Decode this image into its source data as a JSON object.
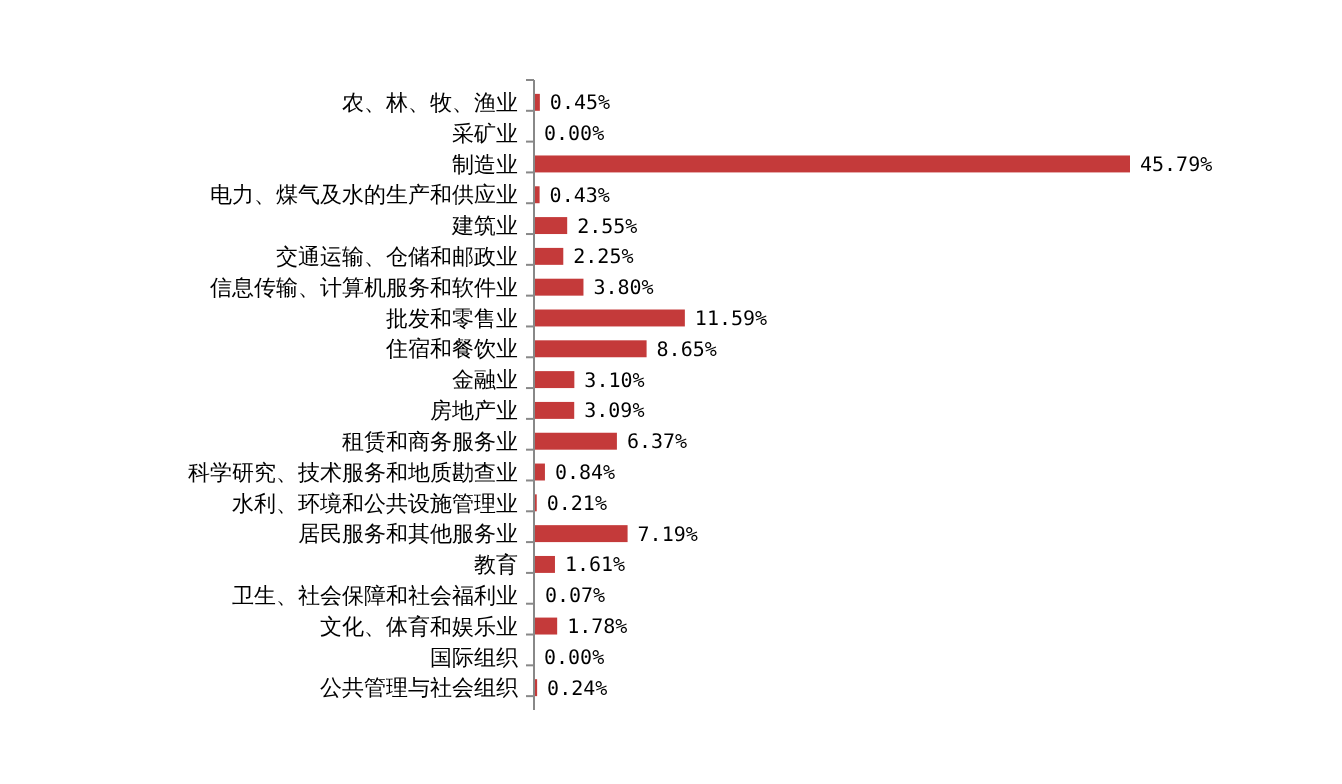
{
  "chart_data": {
    "type": "bar",
    "orientation": "horizontal",
    "categories": [
      "农、林、牧、渔业",
      "采矿业",
      "制造业",
      "电力、煤气及水的生产和供应业",
      "建筑业",
      "交通运输、仓储和邮政业",
      "信息传输、计算机服务和软件业",
      "批发和零售业",
      "住宿和餐饮业",
      "金融业",
      "房地产业",
      "租赁和商务服务业",
      "科学研究、技术服务和地质勘查业",
      "水利、环境和公共设施管理业",
      "居民服务和其他服务业",
      "教育",
      "卫生、社会保障和社会福利业",
      "文化、体育和娱乐业",
      "国际组织",
      "公共管理与社会组织"
    ],
    "values": [
      0.45,
      0,
      45.79,
      0.43,
      2.55,
      2.25,
      3.8,
      11.59,
      8.65,
      3.1,
      3.09,
      6.37,
      0.84,
      0.21,
      7.19,
      1.61,
      0.07,
      1.78,
      0,
      0.24
    ],
    "value_labels": [
      "0.45%",
      "0.00%",
      "45.79%",
      "0.43%",
      "2.55%",
      "2.25%",
      "3.80%",
      "11.59%",
      "8.65%",
      "3.10%",
      "3.09%",
      "6.37%",
      "0.84%",
      "0.21%",
      "7.19%",
      "1.61%",
      "0.07%",
      "1.78%",
      "0.00%",
      "0.24%"
    ],
    "color": "#c43a3a"
  }
}
